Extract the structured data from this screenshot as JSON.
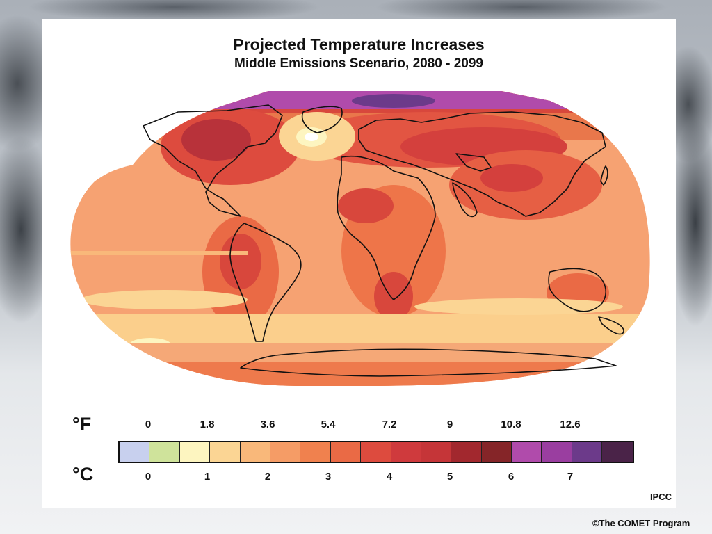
{
  "title": "Projected Temperature Increases",
  "subtitle": "Middle Emissions Scenario, 2080 - 2099",
  "legend": {
    "fahrenheit_unit": "°F",
    "celsius_unit": "°C",
    "fahrenheit_ticks": [
      "0",
      "1.8",
      "3.6",
      "5.4",
      "7.2",
      "9",
      "10.8",
      "12.6"
    ],
    "celsius_ticks": [
      "0",
      "1",
      "2",
      "3",
      "4",
      "5",
      "6",
      "7"
    ],
    "color_steps": [
      "#c8d0ee",
      "#cfe39b",
      "#fdf5c0",
      "#fbd594",
      "#f9b87a",
      "#f59c66",
      "#f0814e",
      "#ea6a45",
      "#dd4b3e",
      "#cf3a3d",
      "#c53538",
      "#a2282e",
      "#852528",
      "#b04bab",
      "#9a3ea0",
      "#6c3a8a",
      "#4a2348"
    ]
  },
  "source": "IPCC",
  "credit": "©The COMET Program"
}
